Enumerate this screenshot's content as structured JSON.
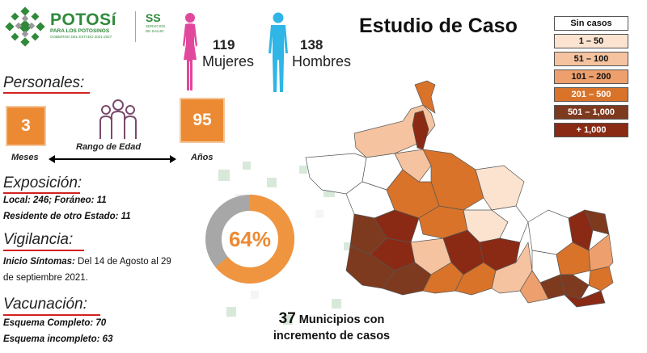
{
  "header": {
    "brand_title": "POTOSí",
    "brand_subtitle": "PARA LOS POTOSINOS",
    "brand_tagline": "GOBIERNO DEL ESTADO 2021-2027",
    "ss_title": "SS",
    "ss_subtitle_1": "SERVICIOS",
    "ss_subtitle_2": "DE SALUD"
  },
  "title": "Estudio de Caso",
  "gender": {
    "women_count": "119",
    "women_label": "Mujeres",
    "men_count": "138",
    "men_label": "Hombres",
    "women_color": "#e0489b",
    "men_color": "#2fb5e6"
  },
  "personales": {
    "heading": "Personales:",
    "min_value": "3",
    "min_label": "Meses",
    "max_value": "95",
    "max_label": "Años",
    "range_label": "Rango de Edad"
  },
  "exposicion": {
    "heading": "Exposición:",
    "line1_label": "Local:  246; Foráneo: 11",
    "line2_label": "Residente de otro Estado: 11"
  },
  "vigilancia": {
    "heading": "Vigilancia:",
    "inicio_label": "Inicio Síntomas:",
    "inicio_text": " Del 14 de Agosto al 29",
    "inicio_text2": "de septiembre 2021."
  },
  "vacunacion": {
    "heading": "Vacunación:",
    "completo": "Esquema Completo: 70",
    "incompleto": "Esquema incompleto: 63"
  },
  "donut": {
    "percent_label": "64%",
    "percent": 64,
    "fill_color": "#f0953f",
    "rest_color": "#a7a7a7"
  },
  "footer": {
    "count": "37",
    "text1": " Municipios con",
    "text2": "incremento de casos"
  },
  "legend": [
    {
      "label": "Sin casos",
      "bg": "#ffffff",
      "fg": "#111111"
    },
    {
      "label": "1 – 50",
      "bg": "#fbe3d0",
      "fg": "#111111"
    },
    {
      "label": "51 – 100",
      "bg": "#f5c3a0",
      "fg": "#111111"
    },
    {
      "label": "101 – 200",
      "bg": "#eda06d",
      "fg": "#111111"
    },
    {
      "label": "201 – 500",
      "bg": "#d9732a",
      "fg": "#ffffff"
    },
    {
      "label": "501 – 1,000",
      "bg": "#7e3a1e",
      "fg": "#ffffff"
    },
    {
      "label": "+ 1,000",
      "bg": "#8a2a14",
      "fg": "#ffffff"
    }
  ],
  "colors": {
    "accent_orange": "#ec8a33",
    "brand_green": "#2f8a3a",
    "underline_red": "#d42020"
  }
}
